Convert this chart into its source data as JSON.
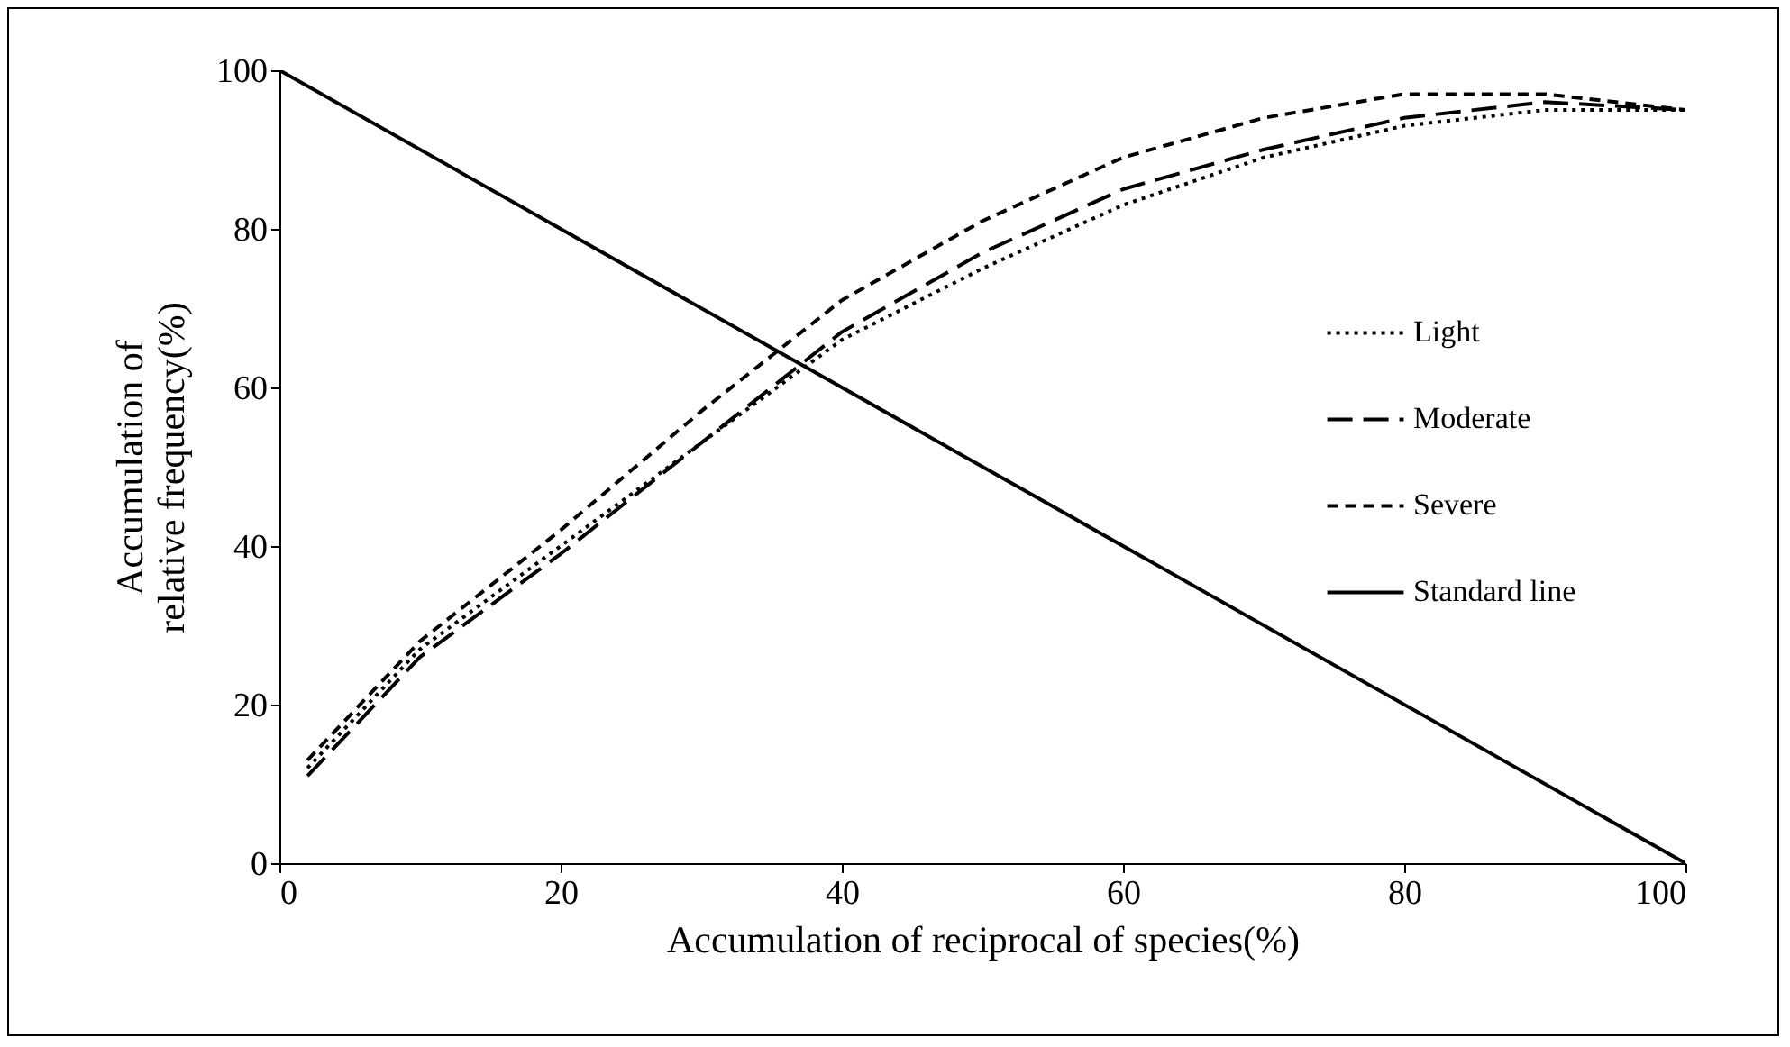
{
  "chart_data": {
    "type": "line",
    "xlabel": "Accumulation of reciprocal of species(%)",
    "ylabel": "Accumulation of relative frequency(%)",
    "xlim": [
      0,
      100
    ],
    "ylim": [
      0,
      100
    ],
    "xticks": [
      0,
      20,
      40,
      60,
      80,
      100
    ],
    "yticks": [
      0,
      20,
      40,
      60,
      80,
      100
    ],
    "grid": false,
    "legend": "right",
    "series": [
      {
        "name": "Light",
        "color": "#000000",
        "line_style": "dotted",
        "x": [
          2,
          10,
          20,
          30,
          40,
          50,
          60,
          70,
          80,
          90,
          100
        ],
        "values": [
          12,
          27,
          40,
          53,
          66,
          75,
          83,
          89,
          93,
          95,
          95
        ]
      },
      {
        "name": "Moderate",
        "color": "#000000",
        "line_style": "dashed",
        "x": [
          2,
          10,
          20,
          30,
          40,
          50,
          60,
          70,
          80,
          90,
          100
        ],
        "values": [
          11,
          26,
          39,
          53,
          67,
          77,
          85,
          90,
          94,
          96,
          95
        ]
      },
      {
        "name": "Severe",
        "color": "#000000",
        "line_style": "dashed",
        "x": [
          2,
          10,
          20,
          30,
          40,
          50,
          60,
          70,
          80,
          90,
          100
        ],
        "values": [
          13,
          28,
          42,
          57,
          71,
          81,
          89,
          94,
          97,
          97,
          95
        ]
      },
      {
        "name": "Standard line",
        "color": "#000000",
        "line_style": "solid",
        "x": [
          0,
          100
        ],
        "values": [
          100,
          0
        ]
      }
    ]
  }
}
